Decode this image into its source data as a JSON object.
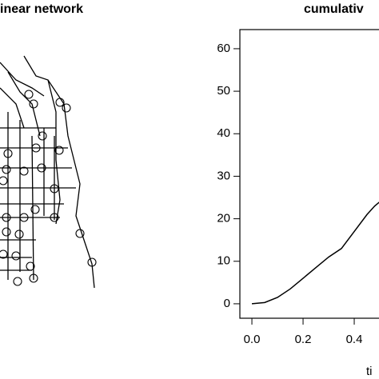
{
  "chart_data": [
    {
      "type": "network",
      "title": "inear network"
    },
    {
      "type": "line",
      "title": "cumulativ",
      "x_label": "ti",
      "color": "#000000",
      "x": [
        0.0,
        0.05,
        0.1,
        0.15,
        0.2,
        0.25,
        0.3,
        0.35,
        0.4,
        0.45,
        0.48,
        0.5
      ],
      "values": [
        0,
        0.3,
        1.5,
        3.5,
        6,
        8.5,
        11,
        13,
        17,
        21,
        23,
        24
      ],
      "xlim": [
        -0.047,
        1.0
      ],
      "ylim": [
        -3.4,
        64.5
      ],
      "xticks": [
        {
          "value": 0.0,
          "label": "0.0"
        },
        {
          "value": 0.2,
          "label": "0.2"
        },
        {
          "value": 0.4,
          "label": "0.4"
        }
      ],
      "yticks": [
        0,
        10,
        20,
        30,
        40,
        50,
        60
      ]
    }
  ]
}
